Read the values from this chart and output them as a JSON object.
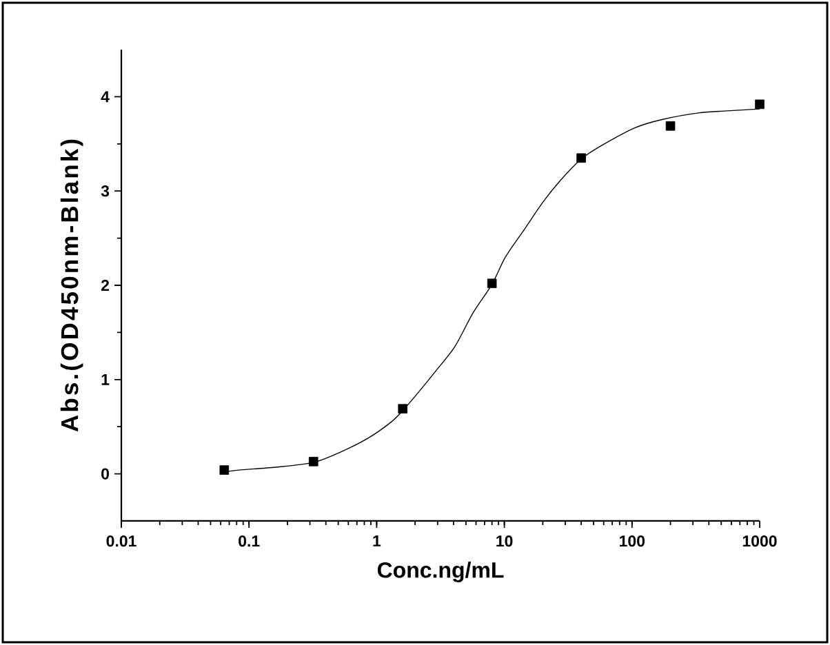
{
  "chart_data": {
    "type": "scatter",
    "xlabel": "Conc.ng/mL",
    "ylabel": "Abs.(OD450nm-Blank)",
    "log": "x",
    "xlim": [
      0.01,
      1000
    ],
    "ylim": [
      -0.5,
      4.5
    ],
    "xticks": [
      0.01,
      0.1,
      1,
      10,
      100,
      1000
    ],
    "yticks": [
      0,
      1,
      2,
      3,
      4
    ],
    "grid": false,
    "series": [
      {
        "type": "line",
        "color": "#000000",
        "marker": "none",
        "line_style": "solid",
        "x": [
          0.064,
          0.083,
          0.162,
          0.32,
          0.52,
          0.86,
          1.3,
          1.6,
          2.2,
          2.94,
          4.1,
          5.7,
          8,
          10.2,
          14.3,
          20,
          27.8,
          40,
          59,
          105,
          174,
          339,
          557,
          1000
        ],
        "values": [
          0.02,
          0.04,
          0.07,
          0.12,
          0.23,
          0.38,
          0.55,
          0.67,
          0.89,
          1.1,
          1.35,
          1.71,
          2.01,
          2.3,
          2.59,
          2.88,
          3.12,
          3.34,
          3.49,
          3.67,
          3.76,
          3.83,
          3.85,
          3.87
        ]
      },
      {
        "color": "#000000",
        "marker": "square",
        "x": [
          0.064,
          0.32,
          1.6,
          8,
          40,
          200,
          1000
        ],
        "values": [
          0.04,
          0.13,
          0.69,
          2.02,
          3.35,
          3.69,
          3.92
        ]
      }
    ]
  }
}
